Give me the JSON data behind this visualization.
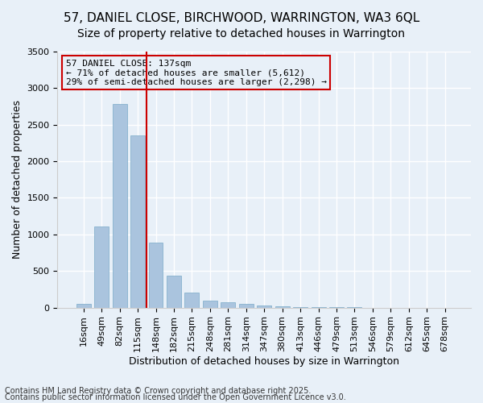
{
  "title": "57, DANIEL CLOSE, BIRCHWOOD, WARRINGTON, WA3 6QL",
  "subtitle": "Size of property relative to detached houses in Warrington",
  "xlabel": "Distribution of detached houses by size in Warrington",
  "ylabel": "Number of detached properties",
  "categories": [
    "16sqm",
    "49sqm",
    "82sqm",
    "115sqm",
    "148sqm",
    "182sqm",
    "215sqm",
    "248sqm",
    "281sqm",
    "314sqm",
    "347sqm",
    "380sqm",
    "413sqm",
    "446sqm",
    "479sqm",
    "513sqm",
    "546sqm",
    "579sqm",
    "612sqm",
    "645sqm",
    "678sqm"
  ],
  "values": [
    50,
    1110,
    2780,
    2350,
    890,
    440,
    200,
    100,
    70,
    50,
    30,
    15,
    8,
    5,
    3,
    2,
    1,
    1,
    0,
    0,
    0
  ],
  "bar_color": "#aac4de",
  "bar_edge_color": "#7aaac8",
  "bg_color": "#e8f0f8",
  "grid_color": "#ffffff",
  "vline_x": 3.5,
  "vline_color": "#cc0000",
  "annotation_text": "57 DANIEL CLOSE: 137sqm\n← 71% of detached houses are smaller (5,612)\n29% of semi-detached houses are larger (2,298) →",
  "annotation_box_color": "#cc0000",
  "annotation_text_color": "#000000",
  "footer1": "Contains HM Land Registry data © Crown copyright and database right 2025.",
  "footer2": "Contains public sector information licensed under the Open Government Licence v3.0.",
  "ylim": [
    0,
    3500
  ],
  "title_fontsize": 11,
  "subtitle_fontsize": 10,
  "xlabel_fontsize": 9,
  "ylabel_fontsize": 9,
  "tick_fontsize": 8,
  "annotation_fontsize": 8,
  "footer_fontsize": 7
}
